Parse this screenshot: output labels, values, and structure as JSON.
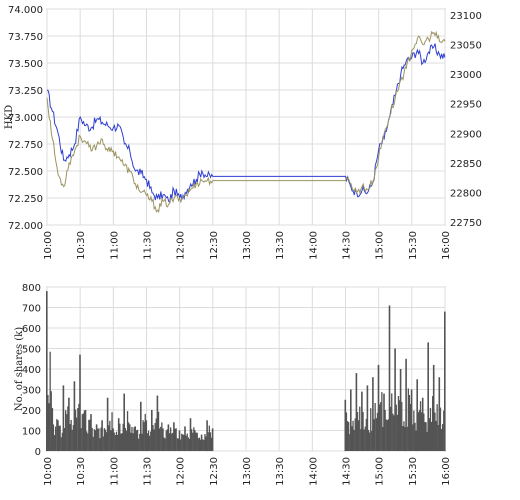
{
  "chart_data": [
    {
      "type": "line",
      "ylabel": "HKD",
      "y_left_ticks": [
        "74.000",
        "73.750",
        "73.500",
        "73.250",
        "73.000",
        "72.750",
        "72.500",
        "72.250",
        "72.000"
      ],
      "y_left_lim": [
        72.0,
        74.0
      ],
      "y_right_ticks": [
        "23100",
        "23050",
        "23000",
        "22950",
        "22900",
        "22850",
        "22800",
        "22750"
      ],
      "y_right_lim": [
        22745,
        23110
      ],
      "x_ticks": [
        "10:00",
        "10:30",
        "11:00",
        "11:30",
        "12:00",
        "12:30",
        "13:00",
        "13:30",
        "14:00",
        "14:30",
        "15:00",
        "15:30",
        "16:00"
      ],
      "grid": true,
      "colors": {
        "left_series": "#2f3fd0",
        "right_series": "#9b9460"
      },
      "series": [
        {
          "axis": "left",
          "x": [
            "10:00",
            "10:05",
            "10:10",
            "10:15",
            "10:20",
            "10:25",
            "10:30",
            "10:35",
            "10:40",
            "10:45",
            "10:50",
            "10:55",
            "11:00",
            "11:05",
            "11:10",
            "11:15",
            "11:20",
            "11:25",
            "11:30",
            "11:35",
            "11:40",
            "11:45",
            "11:50",
            "11:55",
            "12:00",
            "12:05",
            "12:10",
            "12:15",
            "12:20",
            "12:25",
            "12:30",
            "14:30",
            "14:35",
            "14:40",
            "14:45",
            "14:50",
            "14:55",
            "15:00",
            "15:05",
            "15:10",
            "15:15",
            "15:20",
            "15:25",
            "15:30",
            "15:35",
            "15:40",
            "15:45",
            "15:50",
            "15:55",
            "16:00"
          ],
          "values": [
            73.25,
            73.05,
            72.85,
            72.6,
            72.65,
            72.75,
            73.0,
            72.92,
            72.9,
            72.98,
            72.95,
            72.92,
            72.9,
            72.92,
            72.75,
            72.68,
            72.5,
            72.48,
            72.42,
            72.3,
            72.25,
            72.28,
            72.22,
            72.32,
            72.25,
            72.3,
            72.38,
            72.42,
            72.5,
            72.45,
            72.45,
            72.45,
            72.35,
            72.3,
            72.32,
            72.3,
            72.4,
            72.7,
            72.8,
            73.0,
            73.2,
            73.4,
            73.52,
            73.55,
            73.62,
            73.5,
            73.6,
            73.65,
            73.58,
            73.55
          ]
        },
        {
          "axis": "right",
          "x": [
            "10:00",
            "10:05",
            "10:10",
            "10:15",
            "10:20",
            "10:25",
            "10:30",
            "10:35",
            "10:40",
            "10:45",
            "10:50",
            "10:55",
            "11:00",
            "11:05",
            "11:10",
            "11:15",
            "11:20",
            "11:25",
            "11:30",
            "11:35",
            "11:40",
            "11:45",
            "11:50",
            "11:55",
            "12:00",
            "12:05",
            "12:10",
            "12:15",
            "12:20",
            "12:25",
            "12:30",
            "14:30",
            "14:35",
            "14:40",
            "14:45",
            "14:50",
            "14:55",
            "15:00",
            "15:05",
            "15:10",
            "15:15",
            "15:20",
            "15:25",
            "15:30",
            "15:35",
            "15:40",
            "15:45",
            "15:50",
            "15:55",
            "16:00"
          ],
          "values": [
            22960,
            22890,
            22830,
            22810,
            22850,
            22870,
            22895,
            22885,
            22870,
            22880,
            22890,
            22870,
            22870,
            22860,
            22845,
            22835,
            22815,
            22800,
            22795,
            22785,
            22770,
            22785,
            22780,
            22790,
            22790,
            22795,
            22805,
            22815,
            22820,
            22820,
            22820,
            22820,
            22815,
            22800,
            22810,
            22805,
            22820,
            22860,
            22900,
            22930,
            22960,
            22990,
            23010,
            23040,
            23060,
            23050,
            23060,
            23070,
            23055,
            23055
          ]
        }
      ]
    },
    {
      "type": "bar",
      "ylabel": "No. of shares (k)",
      "y_ticks": [
        "800",
        "700",
        "600",
        "500",
        "400",
        "300",
        "200",
        "100",
        "0"
      ],
      "ylim": [
        0,
        800
      ],
      "x_ticks": [
        "10:00",
        "10:30",
        "11:00",
        "11:30",
        "12:00",
        "12:30",
        "13:00",
        "13:30",
        "14:00",
        "14:30",
        "15:00",
        "15:30",
        "16:00"
      ],
      "grid": true,
      "colors": {
        "bars": "#545454"
      },
      "x": [
        "10:00",
        "10:05",
        "10:10",
        "10:15",
        "10:20",
        "10:25",
        "10:30",
        "10:35",
        "10:40",
        "10:45",
        "10:50",
        "10:55",
        "11:00",
        "11:05",
        "11:10",
        "11:15",
        "11:20",
        "11:25",
        "11:30",
        "11:35",
        "11:40",
        "11:45",
        "11:50",
        "11:55",
        "12:00",
        "12:05",
        "12:10",
        "12:15",
        "12:20",
        "12:25",
        "12:30",
        "14:30",
        "14:35",
        "14:40",
        "14:45",
        "14:50",
        "14:55",
        "15:00",
        "15:05",
        "15:10",
        "15:15",
        "15:20",
        "15:25",
        "15:30",
        "15:35",
        "15:40",
        "15:45",
        "15:50",
        "15:55",
        "16:00"
      ],
      "values": [
        780,
        210,
        150,
        320,
        260,
        340,
        470,
        200,
        180,
        130,
        150,
        260,
        110,
        160,
        280,
        130,
        120,
        240,
        150,
        200,
        270,
        110,
        130,
        140,
        100,
        120,
        160,
        90,
        80,
        150,
        110,
        250,
        300,
        380,
        290,
        320,
        360,
        420,
        280,
        710,
        500,
        400,
        450,
        300,
        350,
        260,
        530,
        420,
        360,
        680
      ]
    }
  ]
}
